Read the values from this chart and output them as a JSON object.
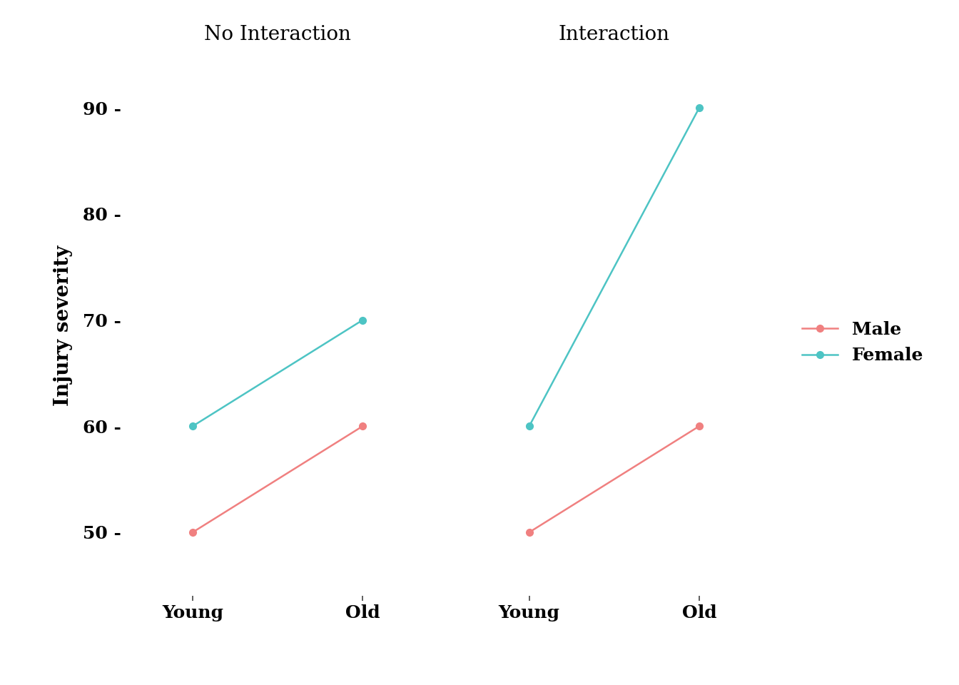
{
  "panels": [
    "No Interaction",
    "Interaction"
  ],
  "x_labels": [
    "Young",
    "Old"
  ],
  "male_color": "#F08080",
  "female_color": "#4DC4C4",
  "no_interaction": {
    "male": [
      50,
      60
    ],
    "female": [
      60,
      70
    ]
  },
  "interaction": {
    "male": [
      50,
      60
    ],
    "female": [
      60,
      90
    ]
  },
  "ylim": [
    44,
    95
  ],
  "yticks": [
    50,
    60,
    70,
    80,
    90
  ],
  "ylabel": "Injury severity",
  "background_color": "#ffffff",
  "title_fontsize": 20,
  "label_fontsize": 20,
  "tick_fontsize": 18,
  "legend_fontsize": 18,
  "line_width": 1.8,
  "marker_size": 7,
  "marker": "o"
}
